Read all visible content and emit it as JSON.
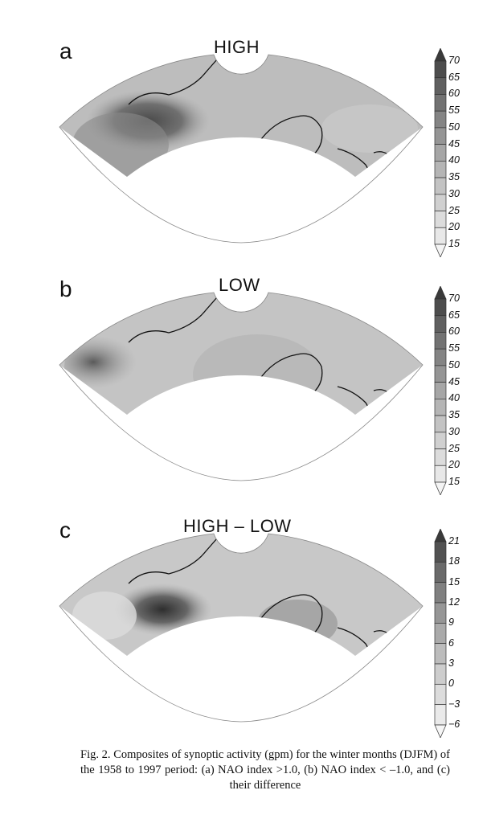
{
  "panels": [
    {
      "letter": "a",
      "title": "HIGH",
      "colorbar": {
        "labels": [
          "70",
          "65",
          "60",
          "55",
          "50",
          "45",
          "40",
          "35",
          "30",
          "25",
          "20",
          "15"
        ],
        "shades": [
          "#3a3a3a",
          "#4d4d4d",
          "#606060",
          "#727272",
          "#848484",
          "#959595",
          "#a6a6a6",
          "#b5b5b5",
          "#c3c3c3",
          "#d0d0d0",
          "#dcdcdc",
          "#e8e8e8",
          "#f4f4f4"
        ]
      }
    },
    {
      "letter": "b",
      "title": "LOW",
      "colorbar": {
        "labels": [
          "70",
          "65",
          "60",
          "55",
          "50",
          "45",
          "40",
          "35",
          "30",
          "25",
          "20",
          "15"
        ],
        "shades": [
          "#3a3a3a",
          "#4d4d4d",
          "#606060",
          "#727272",
          "#848484",
          "#959595",
          "#a6a6a6",
          "#b5b5b5",
          "#c3c3c3",
          "#d0d0d0",
          "#dcdcdc",
          "#e8e8e8",
          "#f4f4f4"
        ]
      }
    },
    {
      "letter": "c",
      "title": "HIGH – LOW",
      "colorbar": {
        "labels": [
          "21",
          "18",
          "15",
          "12",
          "9",
          "6",
          "3",
          "0",
          "−3",
          "−6"
        ],
        "shades": [
          "#3a3a3a",
          "#525252",
          "#6a6a6a",
          "#808080",
          "#969696",
          "#aaaaaa",
          "#bcbcbc",
          "#cdcdcd",
          "#dcdcdc",
          "#eaeaea",
          "#f6f6f6"
        ]
      }
    }
  ],
  "caption": "Fig. 2. Composites of synoptic activity (gpm) for the winter months (DJFM) of the 1958 to 1997 period: (a) NAO index >1.0, (b) NAO index < –1.0, and (c) their difference"
}
